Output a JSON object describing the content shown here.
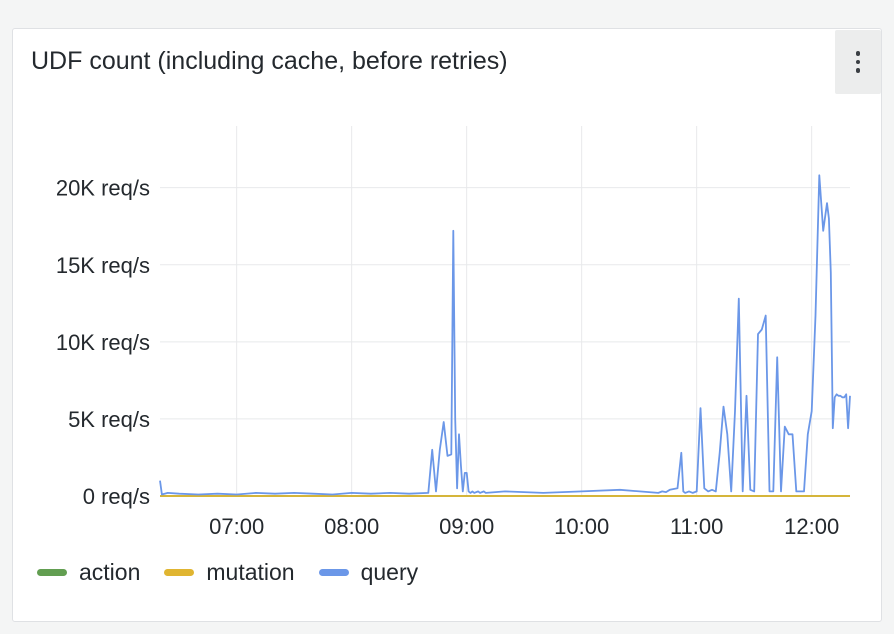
{
  "panel": {
    "title": "UDF count (including cache, before retries)",
    "menu_icon": "kebab-menu-icon"
  },
  "chart_data": {
    "type": "line",
    "title": "UDF count (including cache, before retries)",
    "xlabel": "",
    "ylabel": "",
    "x_range": [
      "06:20",
      "12:20"
    ],
    "x_ticks": [
      "07:00",
      "08:00",
      "09:00",
      "10:00",
      "11:00",
      "12:00"
    ],
    "y_ticks": [
      "0 req/s",
      "5K req/s",
      "10K req/s",
      "15K req/s",
      "20K req/s"
    ],
    "ylim": [
      0,
      24000
    ],
    "y_unit": "req/s",
    "grid": true,
    "legend_position": "bottom-left",
    "series": [
      {
        "name": "action",
        "color": "#629e51",
        "x": [
          "06:20",
          "12:20"
        ],
        "values": [
          0,
          0
        ]
      },
      {
        "name": "mutation",
        "color": "#e0b531",
        "x": [
          "06:20",
          "12:20"
        ],
        "values": [
          0,
          0
        ]
      },
      {
        "name": "query",
        "color": "#6b97e8",
        "x": [
          "06:20",
          "06:21",
          "06:24",
          "06:30",
          "06:40",
          "06:50",
          "07:00",
          "07:10",
          "07:20",
          "07:30",
          "07:40",
          "07:50",
          "08:00",
          "08:10",
          "08:20",
          "08:30",
          "08:40",
          "08:42",
          "08:44",
          "08:46",
          "08:48",
          "08:50",
          "08:52",
          "08:53",
          "08:54",
          "08:55",
          "08:56",
          "08:57",
          "08:58",
          "08:59",
          "09:00",
          "09:01",
          "09:02",
          "09:03",
          "09:04",
          "09:05",
          "09:06",
          "09:07",
          "09:08",
          "09:09",
          "09:10",
          "09:20",
          "09:40",
          "10:00",
          "10:20",
          "10:40",
          "10:42",
          "10:44",
          "10:46",
          "10:50",
          "10:52",
          "10:53",
          "10:54",
          "10:56",
          "10:58",
          "11:00",
          "11:02",
          "11:04",
          "11:06",
          "11:08",
          "11:10",
          "11:12",
          "11:14",
          "11:16",
          "11:18",
          "11:20",
          "11:22",
          "11:24",
          "11:26",
          "11:28",
          "11:30",
          "11:32",
          "11:34",
          "11:36",
          "11:38",
          "11:40",
          "11:42",
          "11:44",
          "11:46",
          "11:48",
          "11:50",
          "11:52",
          "11:54",
          "11:56",
          "11:58",
          "12:00",
          "12:02",
          "12:04",
          "12:06",
          "12:08",
          "12:09",
          "12:10",
          "12:11",
          "12:12",
          "12:13",
          "12:14",
          "12:15",
          "12:16",
          "12:17",
          "12:18",
          "12:19",
          "12:20"
        ],
        "values": [
          1000,
          100,
          200,
          150,
          100,
          150,
          100,
          200,
          150,
          200,
          150,
          100,
          200,
          150,
          200,
          150,
          200,
          3000,
          300,
          3000,
          4800,
          2600,
          2700,
          17200,
          5000,
          500,
          4000,
          2000,
          300,
          1500,
          1500,
          300,
          200,
          300,
          200,
          250,
          300,
          200,
          250,
          300,
          200,
          300,
          200,
          300,
          400,
          200,
          300,
          250,
          400,
          500,
          2800,
          300,
          200,
          300,
          200,
          300,
          5700,
          500,
          300,
          400,
          300,
          2800,
          5800,
          4000,
          300,
          5500,
          12800,
          300,
          6500,
          400,
          300,
          10500,
          10800,
          11700,
          300,
          300,
          9000,
          300,
          4500,
          4000,
          4000,
          300,
          300,
          300,
          4000,
          5500,
          11700,
          20800,
          17200,
          19000,
          18000,
          14500,
          4400,
          6400,
          6600,
          6500,
          6500,
          6400,
          6400,
          6600,
          4400,
          6500
        ]
      }
    ]
  }
}
